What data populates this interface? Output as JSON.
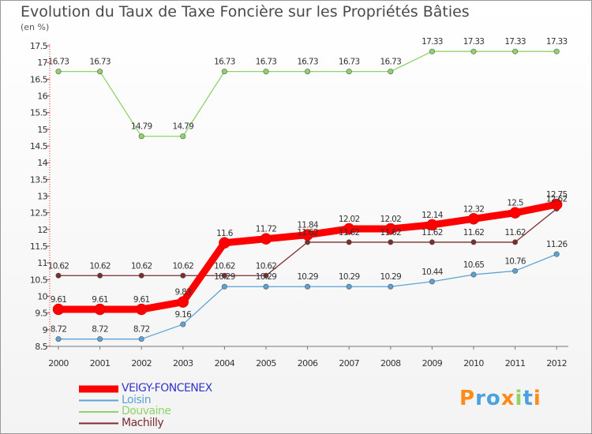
{
  "chart_data": {
    "type": "line",
    "title": "Evolution du Taux de Taxe Foncière sur les Propriétés Bâties",
    "ylabel": "(en %)",
    "categories": [
      "2000",
      "2001",
      "2002",
      "2003",
      "2004",
      "2005",
      "2006",
      "2007",
      "2008",
      "2009",
      "2010",
      "2011",
      "2012"
    ],
    "ylim": [
      8.5,
      17.5
    ],
    "yticks": [
      "8.5",
      "9",
      "9.5",
      "10",
      "10.5",
      "11",
      "11.5",
      "12",
      "12.5",
      "13",
      "13.5",
      "14",
      "14.5",
      "15",
      "15.5",
      "16",
      "16.5",
      "17",
      "17.5"
    ],
    "series": [
      {
        "name": "VEIGY-FONCENEX",
        "color": "#ff0000",
        "labels": [
          "9.61",
          "9.61",
          "9.61",
          "9.83",
          "11.6",
          "11.72",
          "11.84",
          "12.02",
          "12.02",
          "12.14",
          "12.32",
          "12.5",
          "12.75"
        ],
        "values": [
          9.61,
          9.61,
          9.61,
          9.83,
          11.6,
          11.72,
          11.84,
          12.02,
          12.02,
          12.14,
          12.32,
          12.5,
          12.75
        ]
      },
      {
        "name": "Loisin",
        "color": "#5ba3d6",
        "labels": [
          "8.72",
          "8.72",
          "8.72",
          "9.16",
          "10.29",
          "10.29",
          "10.29",
          "10.29",
          "10.29",
          "10.44",
          "10.65",
          "10.76",
          "11.26"
        ],
        "values": [
          8.72,
          8.72,
          8.72,
          9.16,
          10.29,
          10.29,
          10.29,
          10.29,
          10.29,
          10.44,
          10.65,
          10.76,
          11.26
        ]
      },
      {
        "name": "Douvaine",
        "color": "#8fd468",
        "labels": [
          "16.73",
          "16.73",
          "14.79",
          "14.79",
          "16.73",
          "16.73",
          "16.73",
          "16.73",
          "16.73",
          "17.33",
          "17.33",
          "17.33",
          "17.33"
        ],
        "values": [
          16.73,
          16.73,
          14.79,
          14.79,
          16.73,
          16.73,
          16.73,
          16.73,
          16.73,
          17.33,
          17.33,
          17.33,
          17.33
        ]
      },
      {
        "name": "Machilly",
        "color": "#7a2e2e",
        "labels": [
          "10.62",
          "10.62",
          "10.62",
          "10.62",
          "10.62",
          "10.62",
          "11.62",
          "11.62",
          "11.62",
          "11.62",
          "11.62",
          "11.62",
          "12.62"
        ],
        "values": [
          10.62,
          10.62,
          10.62,
          10.62,
          10.62,
          10.62,
          11.62,
          11.62,
          11.62,
          11.62,
          11.62,
          11.62,
          12.62
        ]
      }
    ]
  },
  "logo": {
    "text": "Proxiti"
  }
}
